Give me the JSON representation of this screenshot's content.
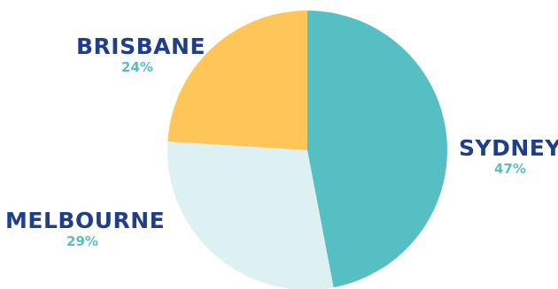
{
  "chart_data": {
    "type": "pie",
    "slices": [
      {
        "name": "SYDNEY",
        "value": 47,
        "label": "47%",
        "color": "#55bfc4"
      },
      {
        "name": "MELBOURNE",
        "value": 29,
        "label": "29%",
        "color": "#ddf1f2"
      },
      {
        "name": "BRISBANE",
        "value": 24,
        "label": "24%",
        "color": "#fec659"
      }
    ],
    "label_color": "#1f3f8b",
    "percent_color": "#55bfc4"
  }
}
